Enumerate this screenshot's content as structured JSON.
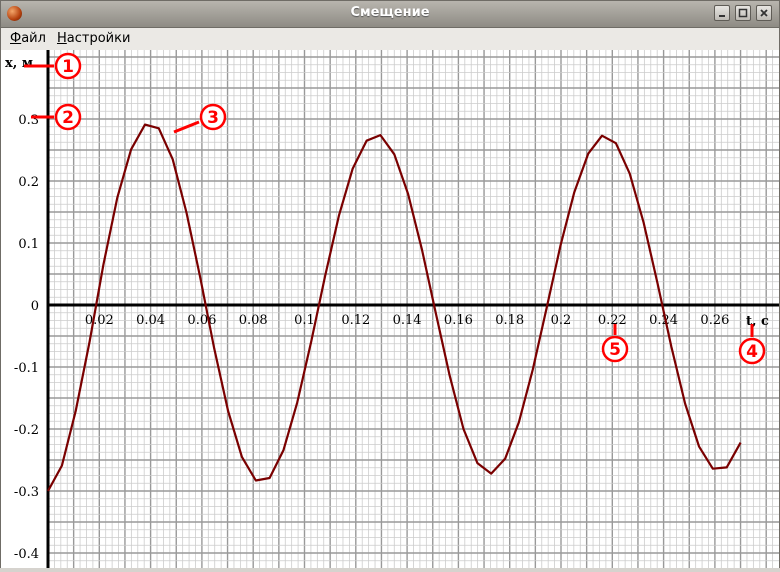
{
  "window": {
    "title": "Смещение",
    "buttons": [
      "minimize",
      "maximize",
      "close"
    ]
  },
  "menu": [
    {
      "label": "Файл",
      "accel": "Ф",
      "rest": "айл"
    },
    {
      "label": "Настройки",
      "accel": "Н",
      "rest": "астройки"
    }
  ],
  "callouts": [
    "1",
    "2",
    "3",
    "4",
    "5"
  ],
  "colors": {
    "curve": "#7a0000",
    "callout": "#ff0000",
    "grid_major": "#999999",
    "grid_minor": "#cccccc"
  },
  "chart_data": {
    "type": "line",
    "title": "",
    "xlabel": "t, c",
    "ylabel": "x, м",
    "xlim": [
      0,
      0.27
    ],
    "ylim": [
      -0.4,
      0.4
    ],
    "x_ticks": [
      "0.02",
      "0.04",
      "0.06",
      "0.08",
      "0.1",
      "0.12",
      "0.14",
      "0.16",
      "0.18",
      "0.2",
      "0.22",
      "0.24",
      "0.26"
    ],
    "y_ticks": [
      "0.3",
      "0.2",
      "0.1",
      "0",
      "-0.1",
      "-0.2",
      "-0.3",
      "-0.4"
    ],
    "grid": true,
    "series": [
      {
        "x": [
          0.0,
          0.0054,
          0.0108,
          0.0162,
          0.0216,
          0.027,
          0.0324,
          0.0378,
          0.0432,
          0.0486,
          0.054,
          0.0594,
          0.0648,
          0.0702,
          0.0756,
          0.081,
          0.0864,
          0.0918,
          0.0972,
          0.1026,
          0.108,
          0.1134,
          0.1188,
          0.1242,
          0.1296,
          0.135,
          0.1404,
          0.1458,
          0.1512,
          0.1566,
          0.162,
          0.1674,
          0.1728,
          0.1782,
          0.1836,
          0.189,
          0.1944,
          0.1998,
          0.2052,
          0.2106,
          0.216,
          0.2214,
          0.2268,
          0.2322,
          0.2376,
          0.243,
          0.2484,
          0.2538,
          0.2592,
          0.2646,
          0.27
        ],
        "y": [
          -0.3,
          -0.259,
          -0.171,
          -0.059,
          0.065,
          0.173,
          0.251,
          0.291,
          0.285,
          0.235,
          0.149,
          0.043,
          -0.07,
          -0.171,
          -0.245,
          -0.283,
          -0.279,
          -0.234,
          -0.157,
          -0.059,
          0.046,
          0.144,
          0.22,
          0.265,
          0.274,
          0.243,
          0.179,
          0.089,
          -0.013,
          -0.114,
          -0.2,
          -0.255,
          -0.272,
          -0.248,
          -0.189,
          -0.104,
          -0.005,
          0.096,
          0.182,
          0.244,
          0.273,
          0.261,
          0.212,
          0.133,
          0.036,
          -0.067,
          -0.159,
          -0.228,
          -0.264,
          -0.262,
          -0.222
        ]
      }
    ]
  }
}
